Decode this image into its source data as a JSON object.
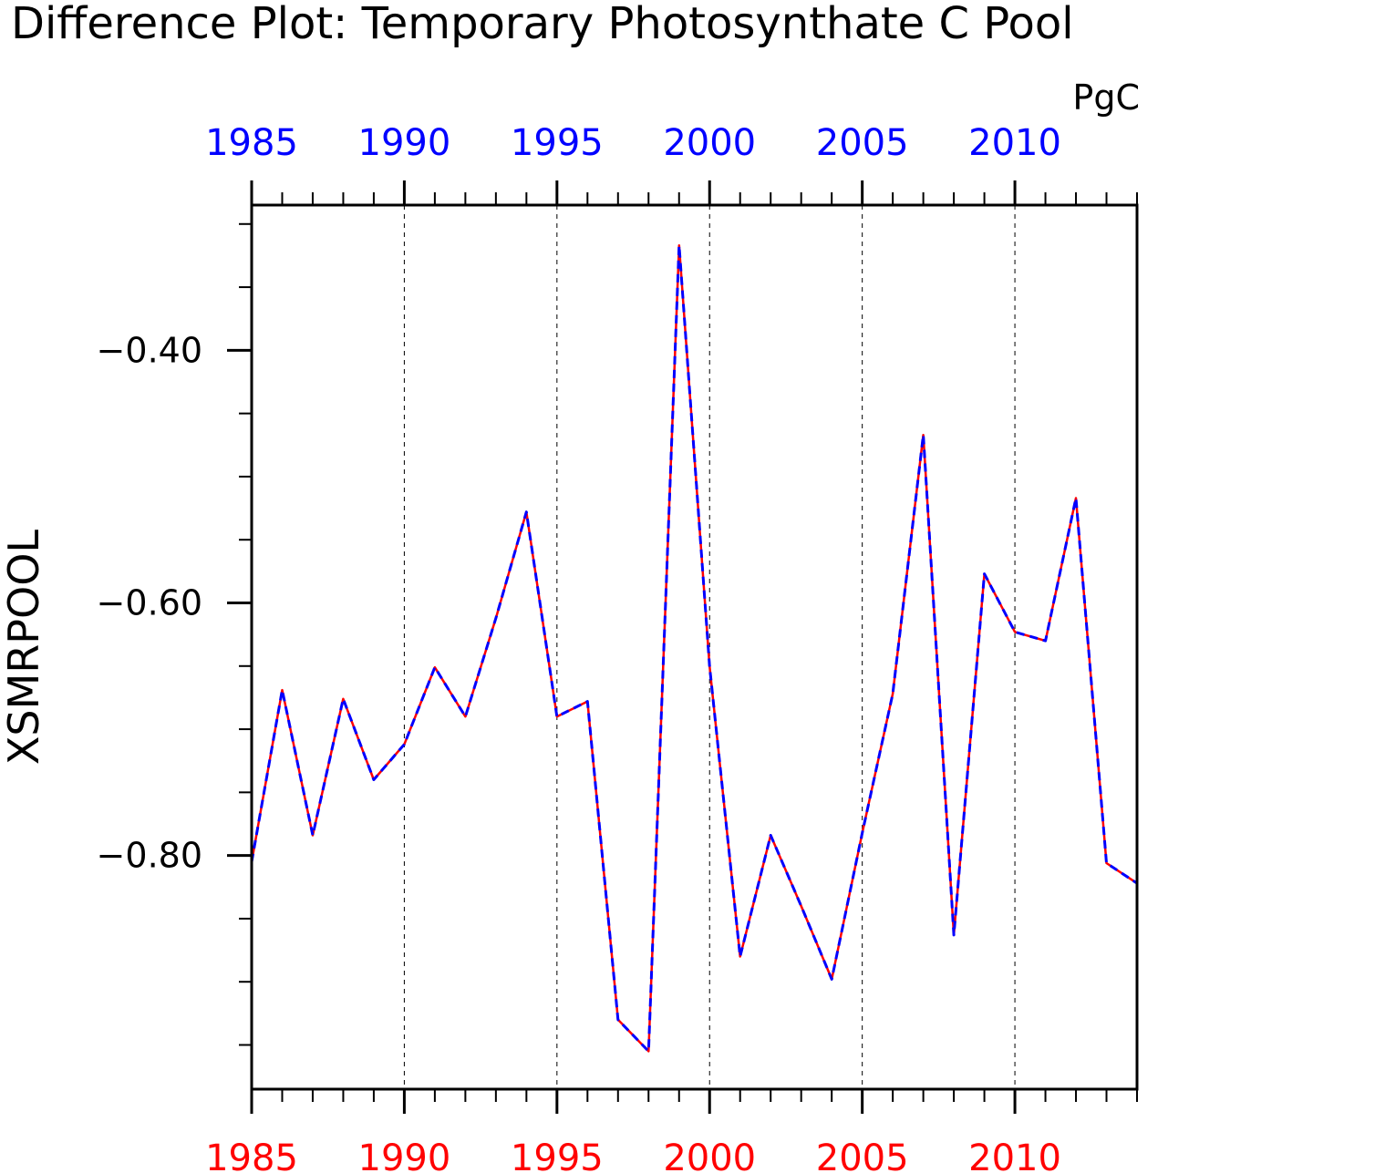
{
  "chart_data": {
    "type": "line",
    "title": "Difference Plot: Temporary Photosynthate C Pool",
    "units": "PgC",
    "ylabel": "XSMRPOOL",
    "xlabel": "",
    "xlim": [
      1985,
      2014
    ],
    "ylim": [
      -0.985,
      -0.285
    ],
    "x_ticks_major": [
      1985,
      1990,
      1995,
      2000,
      2005,
      2010
    ],
    "x_tick_labels_top": [
      "1985",
      "1990",
      "1995",
      "2000",
      "2005",
      "2010"
    ],
    "x_tick_labels_bottom": [
      "1985",
      "1990",
      "1995",
      "2000",
      "2005",
      "2010"
    ],
    "y_ticks_major": [
      -0.8,
      -0.6,
      -0.4
    ],
    "y_tick_labels": [
      "−0.80",
      "−0.60",
      "−0.40"
    ],
    "y_ticks_minor": [
      -0.95,
      -0.9,
      -0.85,
      -0.75,
      -0.7,
      -0.65,
      -0.55,
      -0.5,
      -0.45,
      -0.35,
      -0.3
    ],
    "grid": "vertical dashed at major x ticks",
    "x": [
      1985,
      1986,
      1987,
      1988,
      1989,
      1990,
      1991,
      1992,
      1993,
      1994,
      1995,
      1996,
      1997,
      1998,
      1999,
      2000,
      2001,
      2002,
      2003,
      2004,
      2005,
      2006,
      2007,
      2008,
      2009,
      2010,
      2011,
      2012,
      2013,
      2014
    ],
    "series": [
      {
        "color": "#ff0000",
        "style": "solid",
        "values": [
          -0.805,
          -0.669,
          -0.784,
          -0.676,
          -0.74,
          -0.712,
          -0.651,
          -0.69,
          -0.612,
          -0.528,
          -0.69,
          -0.678,
          -0.93,
          -0.955,
          -0.317,
          -0.65,
          -0.88,
          -0.784,
          -0.84,
          -0.898,
          -0.782,
          -0.672,
          -0.467,
          -0.863,
          -0.577,
          -0.623,
          -0.63,
          -0.517,
          -0.806,
          -0.822
        ]
      },
      {
        "color": "#0000ff",
        "style": "dashed",
        "values": [
          -0.805,
          -0.669,
          -0.784,
          -0.676,
          -0.74,
          -0.712,
          -0.651,
          -0.69,
          -0.612,
          -0.528,
          -0.69,
          -0.678,
          -0.93,
          -0.955,
          -0.317,
          -0.65,
          -0.88,
          -0.784,
          -0.84,
          -0.898,
          -0.782,
          -0.672,
          -0.467,
          -0.863,
          -0.577,
          -0.623,
          -0.63,
          -0.517,
          -0.806,
          -0.822
        ]
      }
    ]
  }
}
